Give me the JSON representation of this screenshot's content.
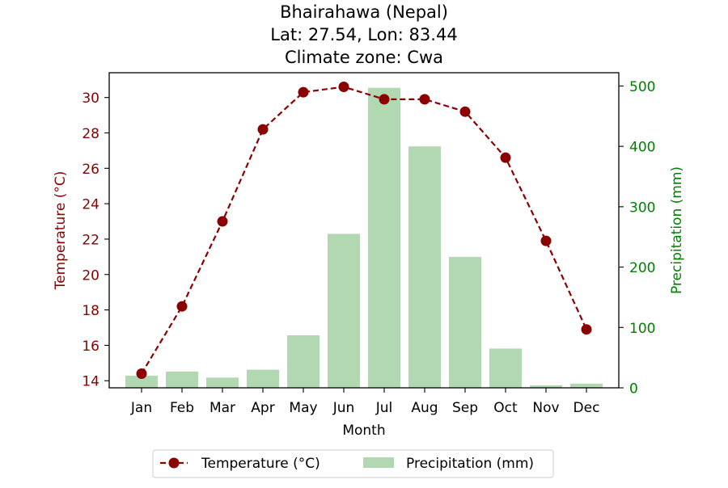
{
  "chart_data": {
    "type": "bar+line",
    "title_lines": [
      "Bhairahawa (Nepal)",
      "Lat: 27.54, Lon: 83.44",
      "Climate zone: Cwa"
    ],
    "xlabel": "Month",
    "ylabel_left": "Temperature (°C)",
    "ylabel_right": "Precipitation (mm)",
    "categories": [
      "Jan",
      "Feb",
      "Mar",
      "Apr",
      "May",
      "Jun",
      "Jul",
      "Aug",
      "Sep",
      "Oct",
      "Nov",
      "Dec"
    ],
    "temperature": {
      "name": "Temperature (°C)",
      "values": [
        14.4,
        18.2,
        23.0,
        28.2,
        30.3,
        30.6,
        29.9,
        29.9,
        29.2,
        26.6,
        21.9,
        16.9
      ],
      "ylim": [
        13.6,
        31.4
      ],
      "yticks": [
        14,
        16,
        18,
        20,
        22,
        24,
        26,
        28,
        30
      ],
      "color": "#8b0000",
      "line_style": "dashed",
      "marker": "circle"
    },
    "precipitation": {
      "name": "Precipitation (mm)",
      "values": [
        20,
        27,
        17,
        30,
        87,
        255,
        497,
        400,
        217,
        65,
        4,
        7
      ],
      "ylim": [
        0,
        522
      ],
      "yticks": [
        0,
        100,
        200,
        300,
        400,
        500
      ],
      "color": "#008000",
      "bar_color": "#b2d8b2"
    },
    "legend": {
      "placement": "bottom-center",
      "entries": [
        "Temperature (°C)",
        "Precipitation (mm)"
      ]
    },
    "grid": false
  }
}
